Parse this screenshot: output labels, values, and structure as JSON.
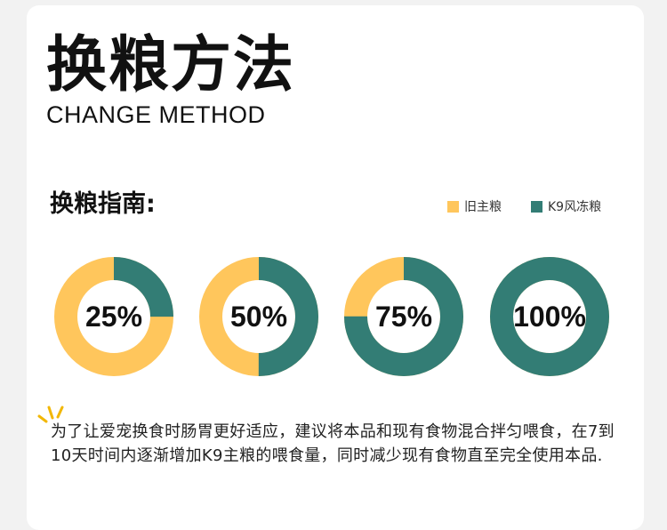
{
  "header": {
    "title_cn": "换粮方法",
    "title_en": "CHANGE METHOD"
  },
  "guide": {
    "label": "换粮指南:"
  },
  "legend": [
    {
      "label": "旧主粮",
      "color": "#FFC65C"
    },
    {
      "label": "K9风冻粮",
      "color": "#337D75"
    }
  ],
  "donuts": [
    {
      "label": "25%",
      "new_fraction": 0.25
    },
    {
      "label": "50%",
      "new_fraction": 0.5
    },
    {
      "label": "75%",
      "new_fraction": 0.75
    },
    {
      "label": "100%",
      "new_fraction": 1.0
    }
  ],
  "note": {
    "text": "为了让爱宠换食时肠胃更好适应，建议将本品和现有食物混合拌匀喂食，在7到10天时间内逐渐增加K9主粮的喂食量，同时减少现有食物直至完全使用本品."
  },
  "colors": {
    "old_food": "#FFC65C",
    "new_food": "#337D75",
    "bulb": "#F2B705"
  },
  "icons": {
    "tip": "lightbulb-rays-icon"
  }
}
